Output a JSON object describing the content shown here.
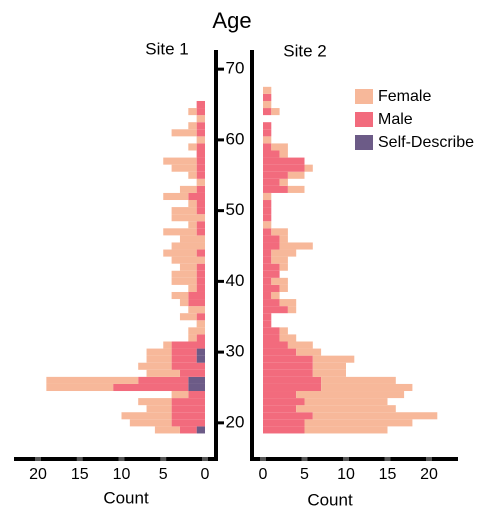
{
  "chart_data": [
    {
      "type": "bar",
      "title": "Site 1",
      "xlabel": "Count",
      "ylabel": "Age",
      "orientation": "left",
      "y": [
        19,
        20,
        21,
        22,
        23,
        24,
        25,
        26,
        27,
        28,
        29,
        30,
        31,
        32,
        33,
        34,
        35,
        36,
        37,
        38,
        39,
        40,
        41,
        42,
        43,
        44,
        45,
        46,
        47,
        48,
        49,
        50,
        51,
        52,
        53,
        54,
        55,
        56,
        57,
        58,
        59,
        60,
        61,
        62,
        63,
        64,
        65,
        66,
        67
      ],
      "series": [
        {
          "name": "Female",
          "color": "#f7b89a",
          "values": [
            3,
            5,
            6,
            3,
            4,
            2,
            8,
            11,
            4,
            4,
            3,
            3,
            1,
            1,
            2,
            1,
            2,
            2,
            1,
            2,
            1,
            3,
            3,
            2,
            4,
            4,
            4,
            3,
            4,
            1,
            4,
            3,
            1,
            3,
            2,
            1,
            1,
            3,
            4,
            0,
            1,
            1,
            3,
            1,
            1,
            1,
            0,
            0,
            0
          ]
        },
        {
          "name": "Male",
          "color": "#f26b7d",
          "values": [
            2,
            4,
            4,
            4,
            4,
            2,
            9,
            6,
            3,
            4,
            3,
            3,
            4,
            1,
            0,
            0,
            1,
            0,
            2,
            2,
            1,
            1,
            1,
            1,
            0,
            1,
            0,
            0,
            1,
            1,
            0,
            1,
            1,
            2,
            1,
            0,
            1,
            1,
            1,
            1,
            1,
            0,
            1,
            1,
            0,
            1,
            1,
            0,
            0
          ]
        },
        {
          "name": "Self-Describe",
          "color": "#6c5b87",
          "values": [
            1,
            0,
            0,
            0,
            0,
            0,
            2,
            2,
            0,
            0,
            1,
            1,
            0,
            0,
            0,
            0,
            0,
            0,
            0,
            0,
            0,
            0,
            0,
            0,
            0,
            0,
            0,
            0,
            0,
            0,
            0,
            0,
            0,
            0,
            0,
            0,
            0,
            0,
            0,
            0,
            0,
            0,
            0,
            0,
            0,
            0,
            0,
            0,
            0
          ]
        }
      ],
      "xlim": [
        0,
        22
      ],
      "xticks": [
        20,
        15,
        10,
        5,
        0
      ],
      "ylim": [
        18,
        72
      ],
      "yticks": [
        20,
        30,
        40,
        50,
        60,
        70
      ]
    },
    {
      "type": "bar",
      "title": "Site 2",
      "xlabel": "Count",
      "orientation": "right",
      "legend": "upper right",
      "y": [
        19,
        20,
        21,
        22,
        23,
        24,
        25,
        26,
        27,
        28,
        29,
        30,
        31,
        32,
        33,
        34,
        35,
        36,
        37,
        38,
        39,
        40,
        41,
        42,
        43,
        44,
        45,
        46,
        47,
        48,
        49,
        50,
        51,
        52,
        53,
        54,
        55,
        56,
        57,
        58,
        59,
        60,
        61,
        62,
        63,
        64,
        65,
        66,
        67
      ],
      "series": [
        {
          "name": "Female",
          "color": "#f7b89a",
          "values": [
            10,
            13,
            15,
            12,
            10,
            13,
            11,
            9,
            4,
            4,
            5,
            3,
            3,
            2,
            1,
            0,
            0,
            1,
            2,
            1,
            1,
            2,
            0,
            1,
            2,
            3,
            4,
            1,
            2,
            1,
            0,
            0,
            0,
            1,
            2,
            1,
            2,
            1,
            0,
            1,
            2,
            1,
            0,
            0,
            0,
            1,
            1,
            0,
            1
          ]
        },
        {
          "name": "Male",
          "color": "#f26b7d",
          "values": [
            5,
            5,
            6,
            4,
            5,
            4,
            7,
            7,
            6,
            6,
            6,
            4,
            3,
            2,
            2,
            1,
            1,
            3,
            2,
            1,
            2,
            1,
            2,
            2,
            1,
            1,
            2,
            2,
            1,
            0,
            1,
            1,
            1,
            0,
            3,
            2,
            3,
            5,
            5,
            2,
            1,
            0,
            1,
            1,
            0,
            1,
            0,
            1,
            0
          ]
        },
        {
          "name": "Self-Describe",
          "color": "#6c5b87",
          "values": [
            0,
            0,
            0,
            0,
            0,
            0,
            0,
            0,
            0,
            0,
            0,
            0,
            0,
            0,
            0,
            0,
            0,
            0,
            0,
            0,
            0,
            0,
            0,
            0,
            0,
            0,
            0,
            0,
            0,
            0,
            0,
            0,
            0,
            0,
            0,
            0,
            0,
            0,
            0,
            0,
            0,
            0,
            0,
            0,
            0,
            0,
            0,
            0,
            0
          ]
        }
      ],
      "xlim": [
        0,
        23
      ],
      "xticks": [
        0,
        5,
        10,
        15,
        20
      ],
      "ylim": [
        18,
        72
      ]
    }
  ]
}
